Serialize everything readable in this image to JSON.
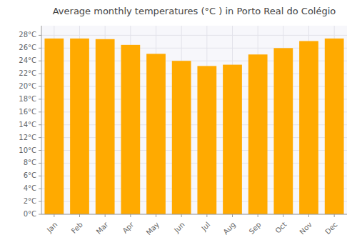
{
  "chart_data": {
    "type": "bar",
    "title": "Average monthly temperatures (°C ) in Porto Real do Colégio",
    "categories": [
      "Jan",
      "Feb",
      "Mar",
      "Apr",
      "May",
      "Jun",
      "Jul",
      "Aug",
      "Sep",
      "Oct",
      "Nov",
      "Dec"
    ],
    "values": [
      27.5,
      27.5,
      27.4,
      26.5,
      25.1,
      24.0,
      23.2,
      23.4,
      25.0,
      26.0,
      27.1,
      27.5
    ],
    "color": "#FFAA00",
    "ylim": [
      0,
      29.5
    ],
    "yticks": [
      {
        "value": 0,
        "label": "0°C"
      },
      {
        "value": 2,
        "label": "2°C"
      },
      {
        "value": 4,
        "label": "4°C"
      },
      {
        "value": 6,
        "label": "6°C"
      },
      {
        "value": 8,
        "label": "8°C"
      },
      {
        "value": 10,
        "label": "10°C"
      },
      {
        "value": 12,
        "label": "12°C"
      },
      {
        "value": 14,
        "label": "14°C"
      },
      {
        "value": 16,
        "label": "16°C"
      },
      {
        "value": 18,
        "label": "18°C"
      },
      {
        "value": 20,
        "label": "20°C"
      },
      {
        "value": 22,
        "label": "22°C"
      },
      {
        "value": 24,
        "label": "24°C"
      },
      {
        "value": 26,
        "label": "26°C"
      },
      {
        "value": 28,
        "label": "28°C"
      }
    ],
    "grid": true
  }
}
